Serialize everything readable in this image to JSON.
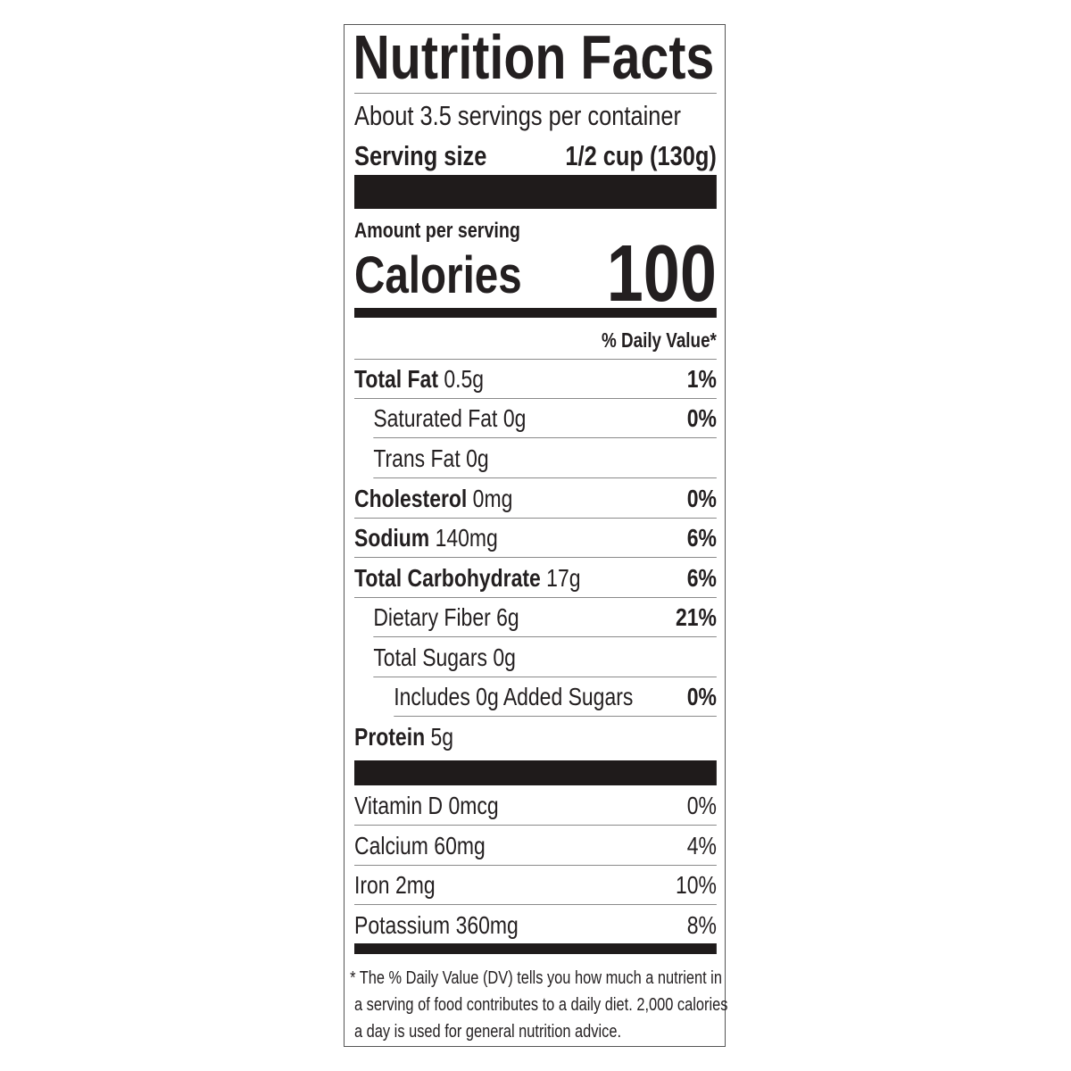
{
  "title": "Nutrition Facts",
  "servings_per_container": "About 3.5 servings per container",
  "serving_size": {
    "label": "Serving size",
    "value": "1/2 cup (130g)"
  },
  "amount_per_serving": "Amount per serving",
  "calories": {
    "label": "Calories",
    "value": "100"
  },
  "dv_header": "% Daily Value*",
  "nutrients": [
    {
      "name": "Total Fat",
      "amount": "0.5g",
      "dv": "1%"
    },
    {
      "name": "Saturated Fat 0g",
      "amount": "",
      "dv": "0%"
    },
    {
      "name": "Trans Fat 0g",
      "amount": "",
      "dv": ""
    },
    {
      "name": "Cholesterol",
      "amount": "0mg",
      "dv": "0%"
    },
    {
      "name": "Sodium",
      "amount": "140mg",
      "dv": "6%"
    },
    {
      "name": "Total Carbohydrate",
      "amount": "17g",
      "dv": "6%"
    },
    {
      "name": "Dietary Fiber 6g",
      "amount": "",
      "dv": "21%"
    },
    {
      "name": "Total Sugars 0g",
      "amount": "",
      "dv": ""
    },
    {
      "name": "Includes 0g Added Sugars",
      "amount": "",
      "dv": "0%"
    },
    {
      "name": "Protein",
      "amount": "5g",
      "dv": ""
    }
  ],
  "vitamins": [
    {
      "name": "Vitamin D 0mcg",
      "dv": "0%"
    },
    {
      "name": "Calcium 60mg",
      "dv": "4%"
    },
    {
      "name": "Iron 2mg",
      "dv": "10%"
    },
    {
      "name": "Potassium 360mg",
      "dv": "8%"
    }
  ],
  "footnote": [
    "* The % Daily Value (DV) tells you how much a nutrient in",
    "a serving of food contributes to a daily diet. 2,000 calories",
    "a day is used for general nutrition advice."
  ]
}
